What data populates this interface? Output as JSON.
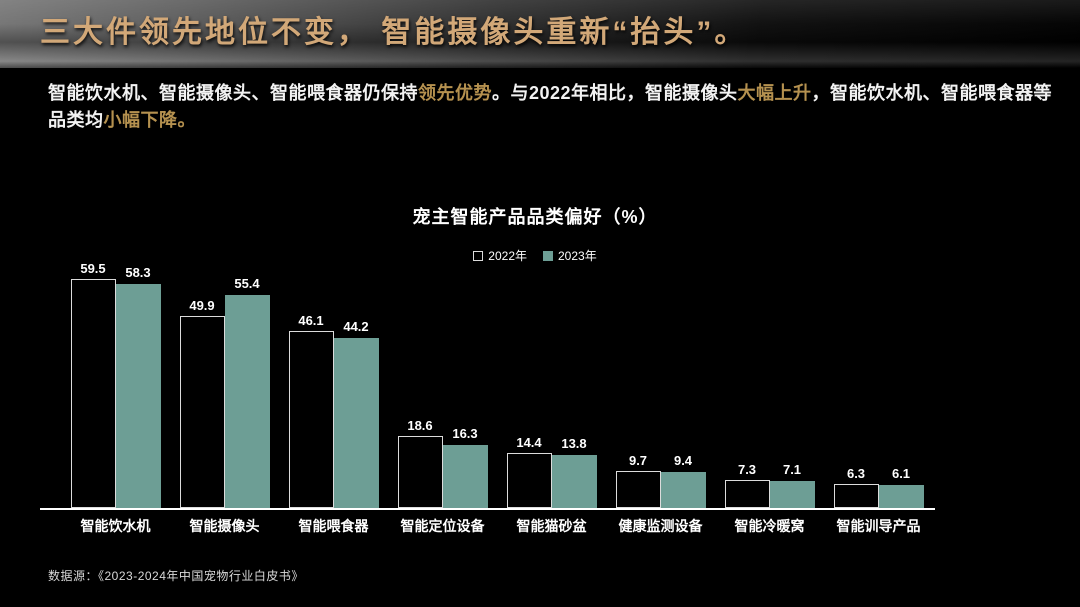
{
  "header": {
    "title": "三大件领先地位不变， 智能摄像头重新“抬头”。"
  },
  "summary": {
    "segments": [
      {
        "text": "智能饮水机、智能摄像头、智能喂食器仍保持",
        "highlight": false
      },
      {
        "text": "领先优势",
        "highlight": true
      },
      {
        "text": "。与2022年相比，智能摄像头",
        "highlight": false
      },
      {
        "text": "大幅上升",
        "highlight": true
      },
      {
        "text": "，智能饮水机、智能喂食器等品类均",
        "highlight": false
      },
      {
        "text": "小幅下降。",
        "highlight": true
      }
    ],
    "highlight_color": "#b5914f"
  },
  "chart_data": {
    "type": "bar",
    "title": "宠主智能产品品类偏好（%）",
    "categories": [
      "智能饮水机",
      "智能摄像头",
      "智能喂食器",
      "智能定位设备",
      "智能猫砂盆",
      "健康监测设备",
      "智能冷暖窝",
      "智能训导产品"
    ],
    "series": [
      {
        "name": "2022年",
        "style": "outline",
        "fill": "#000000",
        "border": "#dcdcdc",
        "values": [
          59.5,
          49.9,
          46.1,
          18.6,
          14.4,
          9.7,
          7.3,
          6.3
        ]
      },
      {
        "name": "2023年",
        "style": "fill",
        "fill": "#6d9e95",
        "values": [
          58.3,
          55.4,
          44.2,
          16.3,
          13.8,
          9.4,
          7.1,
          6.1
        ]
      }
    ],
    "ylim": [
      0,
      65
    ],
    "grid": false,
    "legend_position": "top-center",
    "value_labels": true,
    "xlabel": "",
    "ylabel": ""
  },
  "footer": {
    "source": "数据源：《2023-2024年中国宠物行业白皮书》"
  },
  "colors": {
    "background": "#000000",
    "header_title": "#d2a878",
    "accent_teal": "#6d9e95",
    "axis": "#ffffff",
    "text": "#ffffff"
  }
}
